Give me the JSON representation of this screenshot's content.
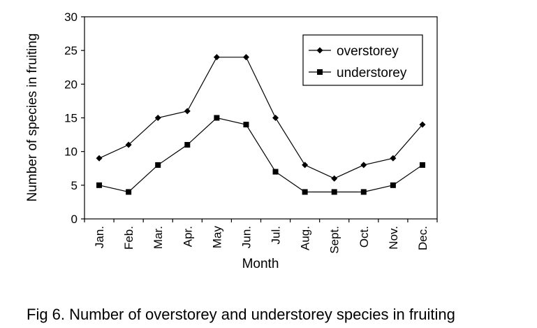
{
  "caption": "Fig 6. Number of overstorey and understorey species in fruiting",
  "chart_data": {
    "type": "line",
    "title": "",
    "xlabel": "Month",
    "ylabel": "Number of species in fruiting",
    "ylim": [
      0,
      30
    ],
    "yticks": [
      "0",
      "5",
      "10",
      "15",
      "20",
      "25",
      "30"
    ],
    "categories": [
      "Jan.",
      "Feb.",
      "Mar.",
      "Apr.",
      "May",
      "Jun.",
      "Jul.",
      "Aug.",
      "Sept.",
      "Oct.",
      "Nov.",
      "Dec."
    ],
    "grid": false,
    "legend_position": "top-right",
    "series": [
      {
        "name": "overstorey",
        "marker": "diamond",
        "color": "#000000",
        "values": [
          9,
          11,
          15,
          16,
          24,
          24,
          15,
          8,
          6,
          8,
          9,
          14
        ]
      },
      {
        "name": "understorey",
        "marker": "square",
        "color": "#000000",
        "values": [
          5,
          4,
          8,
          11,
          15,
          14,
          7,
          4,
          4,
          4,
          5,
          8
        ]
      }
    ]
  }
}
